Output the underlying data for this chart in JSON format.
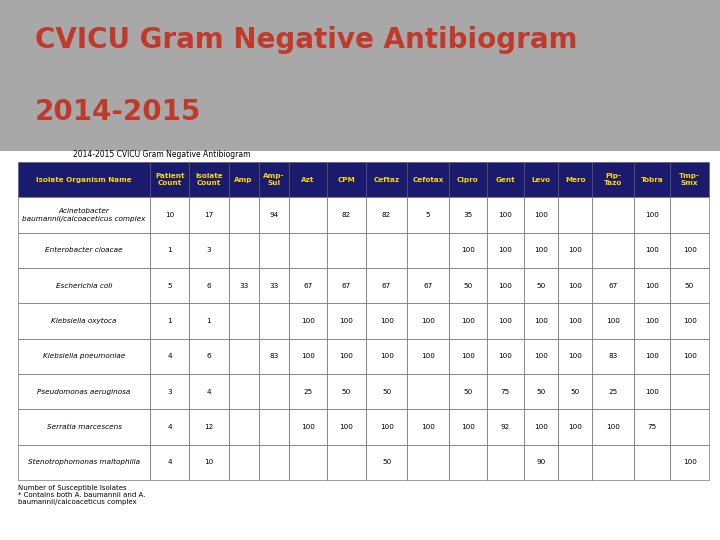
{
  "title_line1": "CVICU Gram Negative Antibiogram",
  "title_line2": "2014-2015",
  "title_color": "#C0392B",
  "background_top": "#A8A8A8",
  "background_bottom": "#FFFFFF",
  "table_title": "2014-2015 CVICU Gram Negative Antibiogram",
  "header_bg": "#1a1a6e",
  "header_text_color": "#FFD700",
  "col_headers": [
    "Patient\nCount",
    "Isolate\nCount",
    "Amp",
    "Amp-\nSul",
    "Azt",
    "CPM",
    "Ceftaz",
    "Cefotax",
    "Cipro",
    "Gent",
    "Levo",
    "Mero",
    "Pip-\nTazo",
    "Tobra",
    "Tmp-\nSmx"
  ],
  "row_headers": [
    "Acinetobacter\nbaumannii/calcoaceticus complex",
    "Enterobacter cloacae",
    "Escherichia coli",
    "Klebsiella oxytoca",
    "Klebsiella pneumoniae",
    "Pseudomonas aeruginosa",
    "Serratia marcescens",
    "Stenotrophomonas maltophilia"
  ],
  "data": [
    [
      10,
      17,
      "",
      94,
      "",
      82,
      82,
      5,
      35,
      100,
      100,
      "",
      "",
      100,
      ""
    ],
    [
      1,
      3,
      "",
      "",
      "",
      "",
      "",
      "",
      100,
      100,
      100,
      100,
      "",
      100,
      100
    ],
    [
      5,
      6,
      33,
      33,
      67,
      67,
      67,
      67,
      50,
      100,
      50,
      100,
      67,
      100,
      50
    ],
    [
      1,
      1,
      "",
      "",
      100,
      100,
      100,
      100,
      100,
      100,
      100,
      100,
      100,
      100,
      100
    ],
    [
      4,
      6,
      "",
      83,
      100,
      100,
      100,
      100,
      100,
      100,
      100,
      100,
      83,
      100,
      100
    ],
    [
      3,
      4,
      "",
      "",
      25,
      50,
      50,
      "",
      50,
      75,
      50,
      50,
      25,
      100,
      ""
    ],
    [
      4,
      12,
      "",
      "",
      100,
      100,
      100,
      100,
      100,
      92,
      100,
      100,
      100,
      75,
      ""
    ],
    [
      4,
      10,
      "",
      "",
      "",
      "",
      50,
      "",
      "",
      "",
      90,
      "",
      "",
      "",
      100
    ]
  ],
  "footnotes": [
    "Number of Susceptible Isolates",
    "* Contains both A. baumannii and A.",
    "baumannii/calcoaceticus complex"
  ]
}
